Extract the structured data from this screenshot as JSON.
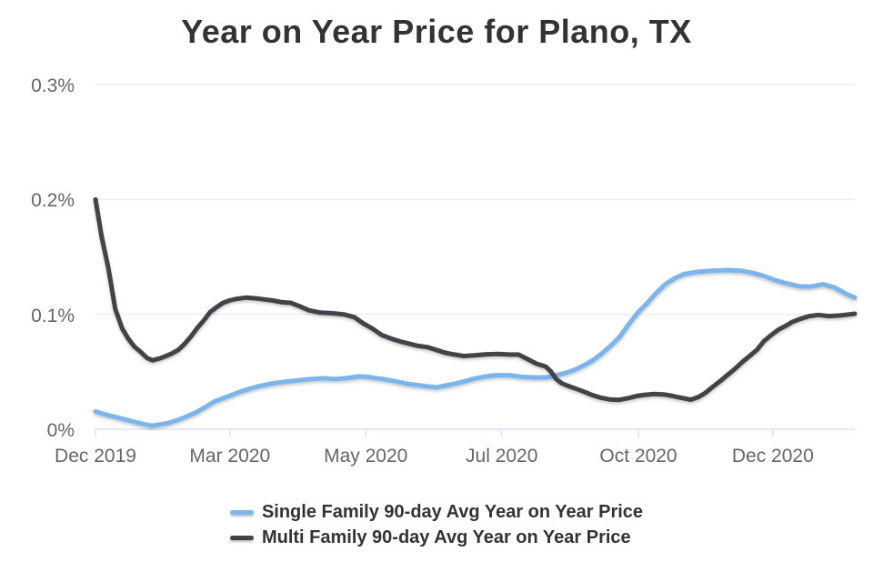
{
  "colors": {
    "background": "#ffffff",
    "title_text": "#333333",
    "axis_label_text": "#666666",
    "gridline": "#e6e6e6",
    "axis_line": "#ccd6eb",
    "single_family_line": "#7cb5ec",
    "multi_family_line": "#424348"
  },
  "chart_data": {
    "type": "line",
    "title": "Year on Year Price for Plano, TX",
    "xlabel": "",
    "ylabel": "",
    "y_unit": "%",
    "ylim": [
      0,
      0.3
    ],
    "grid": true,
    "legend_position": "bottom",
    "y_ticks": [
      {
        "label": "0%",
        "value": 0
      },
      {
        "label": "0.1%",
        "value": 0.1
      },
      {
        "label": "0.2%",
        "value": 0.2
      },
      {
        "label": "0.3%",
        "value": 0.3
      }
    ],
    "x_ticks": [
      {
        "label": "Dec 2019",
        "pos": 0.0
      },
      {
        "label": "Mar 2020",
        "pos": 0.177
      },
      {
        "label": "May 2020",
        "pos": 0.356
      },
      {
        "label": "Jul 2020",
        "pos": 0.535
      },
      {
        "label": "Oct 2020",
        "pos": 0.715
      },
      {
        "label": "Dec 2020",
        "pos": 0.892
      }
    ],
    "series": [
      {
        "name": "Single Family 90-day Avg Year on Year Price",
        "color": "#7cb5ec",
        "points": [
          [
            0.0,
            0.0155
          ],
          [
            0.012,
            0.013
          ],
          [
            0.024,
            0.011
          ],
          [
            0.036,
            0.009
          ],
          [
            0.048,
            0.007
          ],
          [
            0.06,
            0.005
          ],
          [
            0.074,
            0.003
          ],
          [
            0.084,
            0.004
          ],
          [
            0.096,
            0.0055
          ],
          [
            0.108,
            0.008
          ],
          [
            0.12,
            0.011
          ],
          [
            0.132,
            0.0145
          ],
          [
            0.144,
            0.019
          ],
          [
            0.156,
            0.024
          ],
          [
            0.168,
            0.027
          ],
          [
            0.18,
            0.03
          ],
          [
            0.192,
            0.033
          ],
          [
            0.204,
            0.0355
          ],
          [
            0.216,
            0.0375
          ],
          [
            0.228,
            0.0393
          ],
          [
            0.24,
            0.0405
          ],
          [
            0.251,
            0.0415
          ],
          [
            0.263,
            0.0423
          ],
          [
            0.281,
            0.0435
          ],
          [
            0.299,
            0.0443
          ],
          [
            0.317,
            0.0437
          ],
          [
            0.335,
            0.0448
          ],
          [
            0.347,
            0.046
          ],
          [
            0.359,
            0.0455
          ],
          [
            0.371,
            0.0443
          ],
          [
            0.383,
            0.0432
          ],
          [
            0.395,
            0.0417
          ],
          [
            0.413,
            0.0393
          ],
          [
            0.431,
            0.0378
          ],
          [
            0.449,
            0.0364
          ],
          [
            0.461,
            0.038
          ],
          [
            0.473,
            0.0396
          ],
          [
            0.485,
            0.0415
          ],
          [
            0.497,
            0.0437
          ],
          [
            0.511,
            0.0457
          ],
          [
            0.527,
            0.047
          ],
          [
            0.545,
            0.047
          ],
          [
            0.563,
            0.0455
          ],
          [
            0.581,
            0.045
          ],
          [
            0.595,
            0.0452
          ],
          [
            0.607,
            0.047
          ],
          [
            0.619,
            0.049
          ],
          [
            0.631,
            0.0518
          ],
          [
            0.643,
            0.0555
          ],
          [
            0.655,
            0.06
          ],
          [
            0.667,
            0.066
          ],
          [
            0.679,
            0.073
          ],
          [
            0.691,
            0.081
          ],
          [
            0.703,
            0.092
          ],
          [
            0.715,
            0.102
          ],
          [
            0.727,
            0.11
          ],
          [
            0.739,
            0.119
          ],
          [
            0.751,
            0.1265
          ],
          [
            0.763,
            0.1315
          ],
          [
            0.775,
            0.135
          ],
          [
            0.79,
            0.1368
          ],
          [
            0.808,
            0.1378
          ],
          [
            0.832,
            0.1385
          ],
          [
            0.85,
            0.138
          ],
          [
            0.866,
            0.136
          ],
          [
            0.88,
            0.1335
          ],
          [
            0.894,
            0.13
          ],
          [
            0.91,
            0.127
          ],
          [
            0.926,
            0.1245
          ],
          [
            0.942,
            0.124
          ],
          [
            0.958,
            0.1262
          ],
          [
            0.973,
            0.1235
          ],
          [
            0.988,
            0.118
          ],
          [
            1.0,
            0.1145
          ]
        ]
      },
      {
        "name": "Multi Family 90-day Avg Year on Year Price",
        "color": "#424348",
        "points": [
          [
            0.0,
            0.2
          ],
          [
            0.008,
            0.168
          ],
          [
            0.017,
            0.14
          ],
          [
            0.026,
            0.105
          ],
          [
            0.035,
            0.088
          ],
          [
            0.043,
            0.079
          ],
          [
            0.051,
            0.072
          ],
          [
            0.06,
            0.067
          ],
          [
            0.068,
            0.062
          ],
          [
            0.075,
            0.06
          ],
          [
            0.084,
            0.0615
          ],
          [
            0.092,
            0.0635
          ],
          [
            0.101,
            0.066
          ],
          [
            0.109,
            0.069
          ],
          [
            0.117,
            0.074
          ],
          [
            0.126,
            0.081
          ],
          [
            0.134,
            0.088
          ],
          [
            0.143,
            0.095
          ],
          [
            0.151,
            0.102
          ],
          [
            0.159,
            0.106
          ],
          [
            0.168,
            0.11
          ],
          [
            0.176,
            0.112
          ],
          [
            0.186,
            0.1135
          ],
          [
            0.198,
            0.1145
          ],
          [
            0.21,
            0.114
          ],
          [
            0.222,
            0.113
          ],
          [
            0.234,
            0.112
          ],
          [
            0.246,
            0.1105
          ],
          [
            0.257,
            0.11
          ],
          [
            0.269,
            0.107
          ],
          [
            0.281,
            0.1035
          ],
          [
            0.296,
            0.1015
          ],
          [
            0.311,
            0.101
          ],
          [
            0.327,
            0.1
          ],
          [
            0.341,
            0.0975
          ],
          [
            0.353,
            0.092
          ],
          [
            0.365,
            0.0875
          ],
          [
            0.377,
            0.082
          ],
          [
            0.389,
            0.079
          ],
          [
            0.401,
            0.0765
          ],
          [
            0.413,
            0.0745
          ],
          [
            0.425,
            0.0725
          ],
          [
            0.437,
            0.0715
          ],
          [
            0.449,
            0.069
          ],
          [
            0.461,
            0.0665
          ],
          [
            0.473,
            0.065
          ],
          [
            0.485,
            0.0637
          ],
          [
            0.499,
            0.0643
          ],
          [
            0.515,
            0.0652
          ],
          [
            0.531,
            0.0655
          ],
          [
            0.545,
            0.065
          ],
          [
            0.557,
            0.065
          ],
          [
            0.569,
            0.061
          ],
          [
            0.581,
            0.057
          ],
          [
            0.593,
            0.0545
          ],
          [
            0.6,
            0.05
          ],
          [
            0.607,
            0.0435
          ],
          [
            0.614,
            0.04
          ],
          [
            0.623,
            0.0375
          ],
          [
            0.632,
            0.0355
          ],
          [
            0.642,
            0.033
          ],
          [
            0.653,
            0.03
          ],
          [
            0.665,
            0.0275
          ],
          [
            0.677,
            0.026
          ],
          [
            0.689,
            0.0255
          ],
          [
            0.701,
            0.027
          ],
          [
            0.713,
            0.029
          ],
          [
            0.724,
            0.03
          ],
          [
            0.736,
            0.0307
          ],
          [
            0.748,
            0.0303
          ],
          [
            0.76,
            0.029
          ],
          [
            0.772,
            0.0272
          ],
          [
            0.784,
            0.0257
          ],
          [
            0.794,
            0.028
          ],
          [
            0.803,
            0.0315
          ],
          [
            0.813,
            0.037
          ],
          [
            0.823,
            0.042
          ],
          [
            0.832,
            0.047
          ],
          [
            0.842,
            0.0525
          ],
          [
            0.851,
            0.058
          ],
          [
            0.861,
            0.0635
          ],
          [
            0.871,
            0.069
          ],
          [
            0.88,
            0.0765
          ],
          [
            0.89,
            0.082
          ],
          [
            0.899,
            0.0865
          ],
          [
            0.909,
            0.09
          ],
          [
            0.918,
            0.0935
          ],
          [
            0.928,
            0.096
          ],
          [
            0.94,
            0.0985
          ],
          [
            0.952,
            0.0995
          ],
          [
            0.966,
            0.0985
          ],
          [
            0.981,
            0.099
          ],
          [
            0.993,
            0.1
          ],
          [
            1.0,
            0.1005
          ]
        ]
      }
    ]
  }
}
